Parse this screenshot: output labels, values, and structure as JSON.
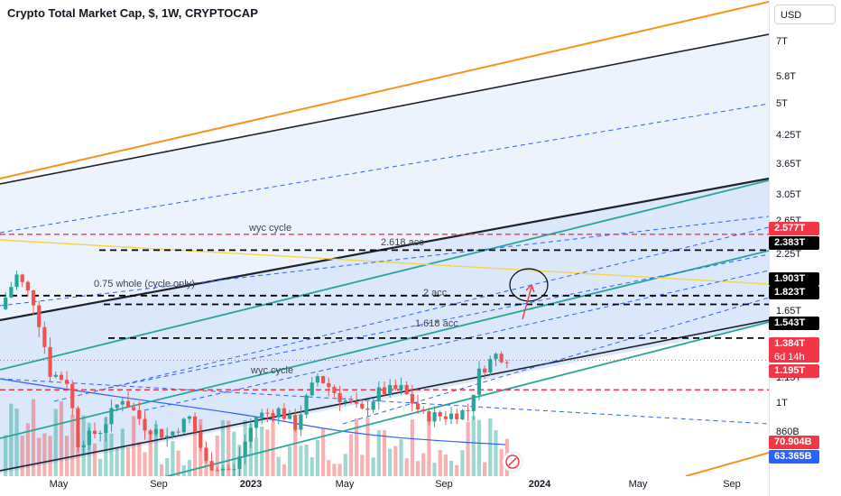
{
  "header": {
    "title": "Crypto Total Market Cap, $, 1W, CRYPTOCAP"
  },
  "price_axis": {
    "currency": "USD",
    "ticks": [
      "7T",
      "5.8T",
      "5T",
      "4.25T",
      "3.65T",
      "3.05T",
      "2.65T",
      "2.25T",
      "1.65T",
      "1.15T",
      "1T",
      "860B"
    ]
  },
  "price_tags": [
    {
      "text": "2.577T",
      "bg": "#f23645"
    },
    {
      "text": "2.383T",
      "bg": "#000000"
    },
    {
      "text": "1.903T",
      "bg": "#000000"
    },
    {
      "text": "1.823T",
      "bg": "#000000"
    },
    {
      "text": "1.543T",
      "bg": "#000000"
    },
    {
      "text": "1.384T",
      "text2": "6d 14h",
      "bg": "#f23645"
    },
    {
      "text": "1.195T",
      "bg": "#f23645"
    },
    {
      "text": "70.904B",
      "bg": "#f23645"
    },
    {
      "text": "63.365B",
      "bg": "#2962ff"
    }
  ],
  "time_axis": {
    "ticks": [
      {
        "text": "May",
        "bold": false
      },
      {
        "text": "Sep",
        "bold": false
      },
      {
        "text": "2023",
        "bold": true
      },
      {
        "text": "May",
        "bold": false
      },
      {
        "text": "Sep",
        "bold": false
      },
      {
        "text": "2024",
        "bold": true
      },
      {
        "text": "May",
        "bold": false
      },
      {
        "text": "Sep",
        "bold": false
      }
    ]
  },
  "annotations": [
    "wyc cycle",
    "2.618 acc",
    "0.75 whole (cycle only)",
    "2 acc",
    "1.618 acc",
    "wyc cycle"
  ],
  "colors": {
    "up": "#26a69a",
    "down": "#ef5350",
    "channel_fill": "#dbe7fb",
    "orange": "#f7931a",
    "teal": "#26a69a",
    "black": "#000000",
    "red_dash": "#f23645"
  },
  "icons": {
    "watermark": "tradingview-logo-icon"
  },
  "chart_data": {
    "type": "candlestick",
    "title": "Crypto Total Market Cap, $, 1W, CRYPTOCAP",
    "y_scale": "log",
    "ylim": [
      0.78,
      8.2
    ],
    "y_unit": "T USD",
    "xlim": [
      "2022-03-07",
      "2024-10-28"
    ],
    "close_path": [
      [
        "2022-03-07",
        1.78
      ],
      [
        "2022-03-28",
        2.1
      ],
      [
        "2022-04-18",
        1.85
      ],
      [
        "2022-05-09",
        1.3
      ],
      [
        "2022-05-30",
        1.25
      ],
      [
        "2022-06-13",
        0.92
      ],
      [
        "2022-07-11",
        0.98
      ],
      [
        "2022-08-08",
        1.15
      ],
      [
        "2022-09-05",
        1.0
      ],
      [
        "2022-10-03",
        0.95
      ],
      [
        "2022-10-31",
        1.04
      ],
      [
        "2022-11-21",
        0.83
      ],
      [
        "2022-12-26",
        0.8
      ],
      [
        "2023-01-23",
        1.05
      ],
      [
        "2023-02-20",
        1.08
      ],
      [
        "2023-03-13",
        1.0
      ],
      [
        "2023-04-10",
        1.28
      ],
      [
        "2023-05-08",
        1.15
      ],
      [
        "2023-06-05",
        1.07
      ],
      [
        "2023-06-26",
        1.18
      ],
      [
        "2023-07-24",
        1.2
      ],
      [
        "2023-08-21",
        1.05
      ],
      [
        "2023-09-18",
        1.05
      ],
      [
        "2023-10-16",
        1.08
      ],
      [
        "2023-10-30",
        1.3
      ],
      [
        "2023-11-20",
        1.42
      ],
      [
        "2023-12-04",
        1.4
      ]
    ],
    "horizontal_levels": [
      {
        "label": "wyc cycle",
        "value": 2.577,
        "style": "red-dashed"
      },
      {
        "label": "2.618 acc",
        "value": 2.383,
        "style": "black-dashed"
      },
      {
        "label": "0.75 whole (cycle only)",
        "value": 1.903,
        "style": "black-dashed"
      },
      {
        "label": "2 acc",
        "value": 1.823,
        "style": "black-dashed"
      },
      {
        "label": "1.618 acc",
        "value": 1.543,
        "style": "black-dashed"
      },
      {
        "label": "wyc cycle",
        "value": 1.195,
        "style": "red-dashed"
      }
    ],
    "last_price": 1.384,
    "countdown": "6d 14h",
    "volume": {
      "last": "70.904B",
      "ma": "63.365B"
    }
  }
}
